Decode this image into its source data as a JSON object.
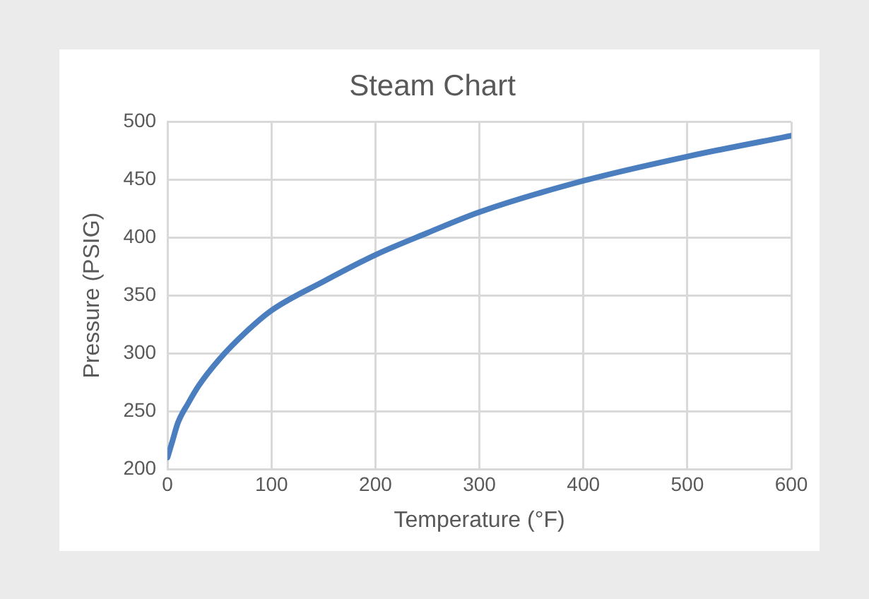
{
  "chart_data": {
    "type": "line",
    "title": "Steam Chart",
    "xlabel": "Temperature (°F)",
    "ylabel": "Pressure (PSIG)",
    "x": [
      0,
      5,
      10,
      20,
      30,
      50,
      75,
      100,
      150,
      200,
      250,
      300,
      400,
      500,
      600
    ],
    "series": [
      {
        "color": "#4a7ebf",
        "values": [
          210,
          225,
          240,
          257,
          272,
          295,
          318,
          337,
          362,
          385,
          404,
          422,
          449,
          470,
          488
        ]
      }
    ],
    "xlim": [
      0,
      600
    ],
    "xticks": [
      0,
      100,
      200,
      300,
      400,
      500,
      600
    ],
    "ylim": [
      200,
      500
    ],
    "yticks": [
      200,
      250,
      300,
      350,
      400,
      450,
      500
    ],
    "grid": true,
    "legend": false,
    "marker": "none",
    "line_style": "solid"
  }
}
